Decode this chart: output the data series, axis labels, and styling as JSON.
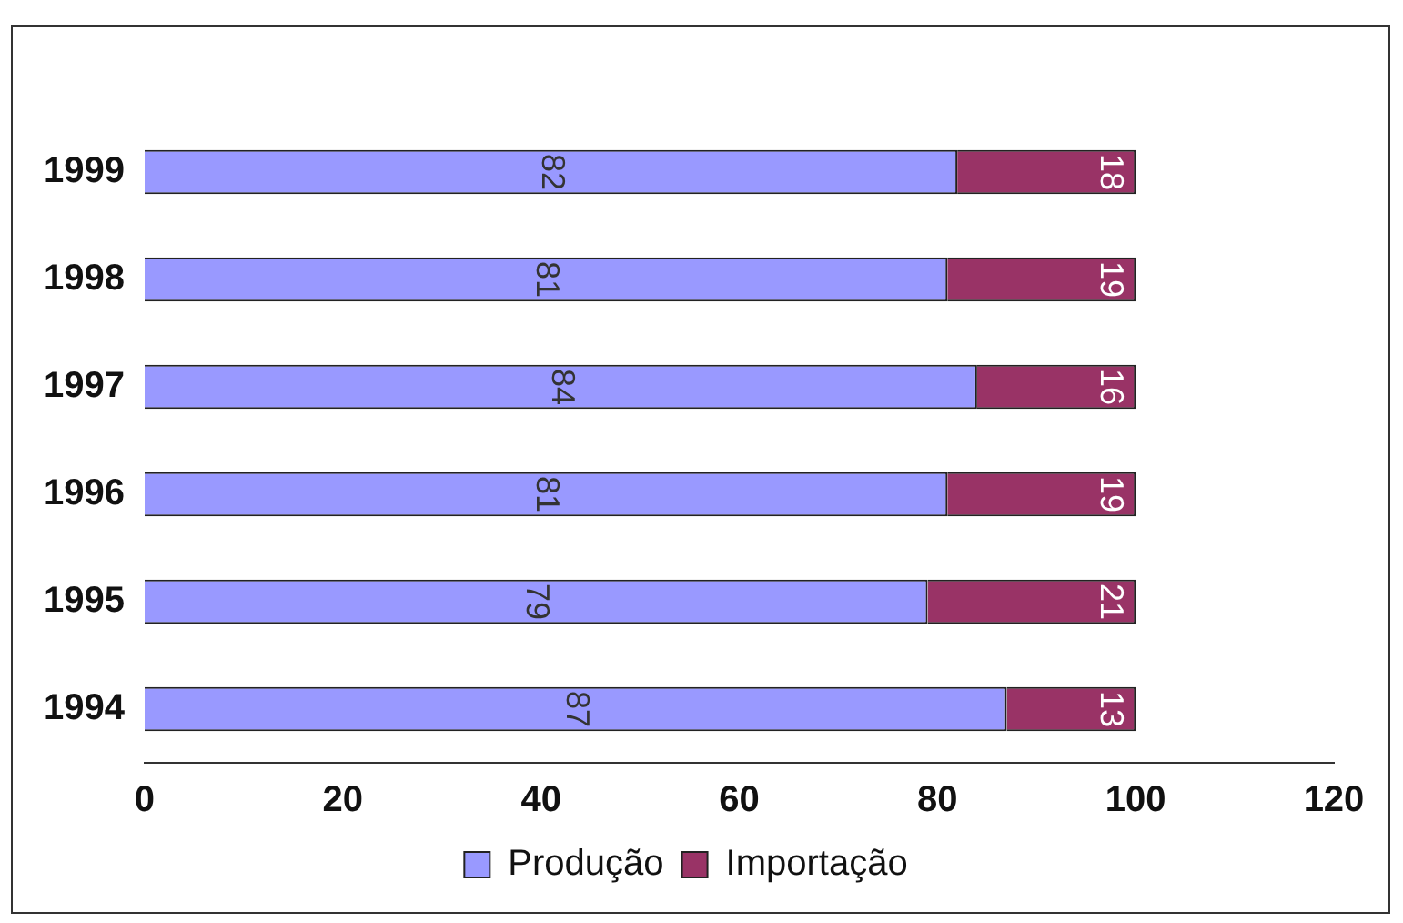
{
  "chart_data": {
    "type": "bar",
    "orientation": "horizontal",
    "stacked": true,
    "categories": [
      "1999",
      "1998",
      "1997",
      "1996",
      "1995",
      "1994"
    ],
    "series": [
      {
        "name": "Produção",
        "color": "#9999ff",
        "values": [
          82,
          81,
          84,
          81,
          79,
          87
        ]
      },
      {
        "name": "Importação",
        "color": "#993366",
        "values": [
          18,
          19,
          16,
          19,
          21,
          13
        ]
      }
    ],
    "xlim": [
      0,
      120
    ],
    "xticks": [
      0,
      20,
      40,
      60,
      80,
      100,
      120
    ],
    "grid": false,
    "legend": "bottom",
    "data_labels": true
  }
}
